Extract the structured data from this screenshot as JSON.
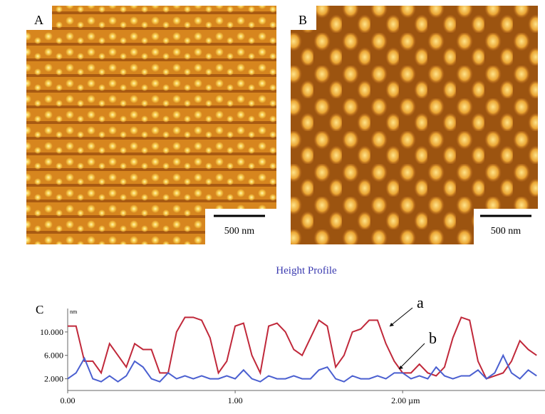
{
  "panels": [
    {
      "label": "A",
      "scale_bar": "500 nm"
    },
    {
      "label": "B",
      "scale_bar": "500 nm"
    }
  ],
  "chart_data": {
    "type": "line",
    "title": "Height Profile",
    "panel_label": "C",
    "y_unit": "nm",
    "annotations": [
      "a",
      "b"
    ],
    "x": [
      0.0,
      0.05,
      0.1,
      0.15,
      0.2,
      0.25,
      0.3,
      0.35,
      0.4,
      0.45,
      0.5,
      0.55,
      0.6,
      0.65,
      0.7,
      0.75,
      0.8,
      0.85,
      0.9,
      0.95,
      1.0,
      1.05,
      1.1,
      1.15,
      1.2,
      1.25,
      1.3,
      1.35,
      1.4,
      1.45,
      1.5,
      1.55,
      1.6,
      1.65,
      1.7,
      1.75,
      1.8,
      1.85,
      1.9,
      1.95,
      2.0,
      2.05,
      2.1,
      2.15,
      2.2,
      2.25,
      2.3,
      2.35,
      2.4,
      2.45,
      2.5,
      2.55,
      2.6,
      2.65,
      2.7,
      2.75,
      2.8
    ],
    "series": [
      {
        "name": "a",
        "color": "#c0283a",
        "values": [
          11,
          11,
          5,
          5,
          3,
          8,
          6,
          4,
          8,
          7,
          7,
          3,
          3,
          10,
          12.5,
          12.5,
          12,
          9,
          3,
          5,
          11,
          11.5,
          6,
          3,
          11,
          11.5,
          10,
          7,
          6,
          9,
          12,
          11,
          4,
          6,
          10,
          10.5,
          12,
          12,
          8,
          5,
          3,
          3,
          4.5,
          3,
          2.5,
          4,
          9,
          12.5,
          12,
          5,
          2,
          2.5,
          3,
          5,
          8.5,
          7,
          6
        ]
      },
      {
        "name": "b",
        "color": "#4a5fd0",
        "values": [
          2,
          3,
          5.5,
          2,
          1.5,
          2.5,
          1.5,
          2.5,
          5,
          4,
          2,
          1.5,
          3,
          2,
          2.5,
          2,
          2.5,
          2,
          2,
          2.5,
          2,
          3.5,
          2,
          1.5,
          2.5,
          2,
          2,
          2.5,
          2,
          2,
          3.5,
          4,
          2,
          1.5,
          2.5,
          2,
          2,
          2.5,
          2,
          3,
          3,
          2,
          2.5,
          2,
          4,
          2.5,
          2,
          2.5,
          2.5,
          3.5,
          2,
          3,
          6,
          3,
          2,
          3.5,
          2.5
        ]
      }
    ],
    "xlim": [
      0,
      2.85
    ],
    "ylim": [
      0,
      14
    ],
    "xticks": [
      {
        "value": 0,
        "label": "0.00"
      },
      {
        "value": 1,
        "label": "1.00"
      },
      {
        "value": 2,
        "label": "2.00 µm"
      }
    ],
    "yticks": [
      {
        "value": 2,
        "label": "2.000"
      },
      {
        "value": 6,
        "label": "6.000"
      },
      {
        "value": 10,
        "label": "10.000"
      }
    ]
  }
}
